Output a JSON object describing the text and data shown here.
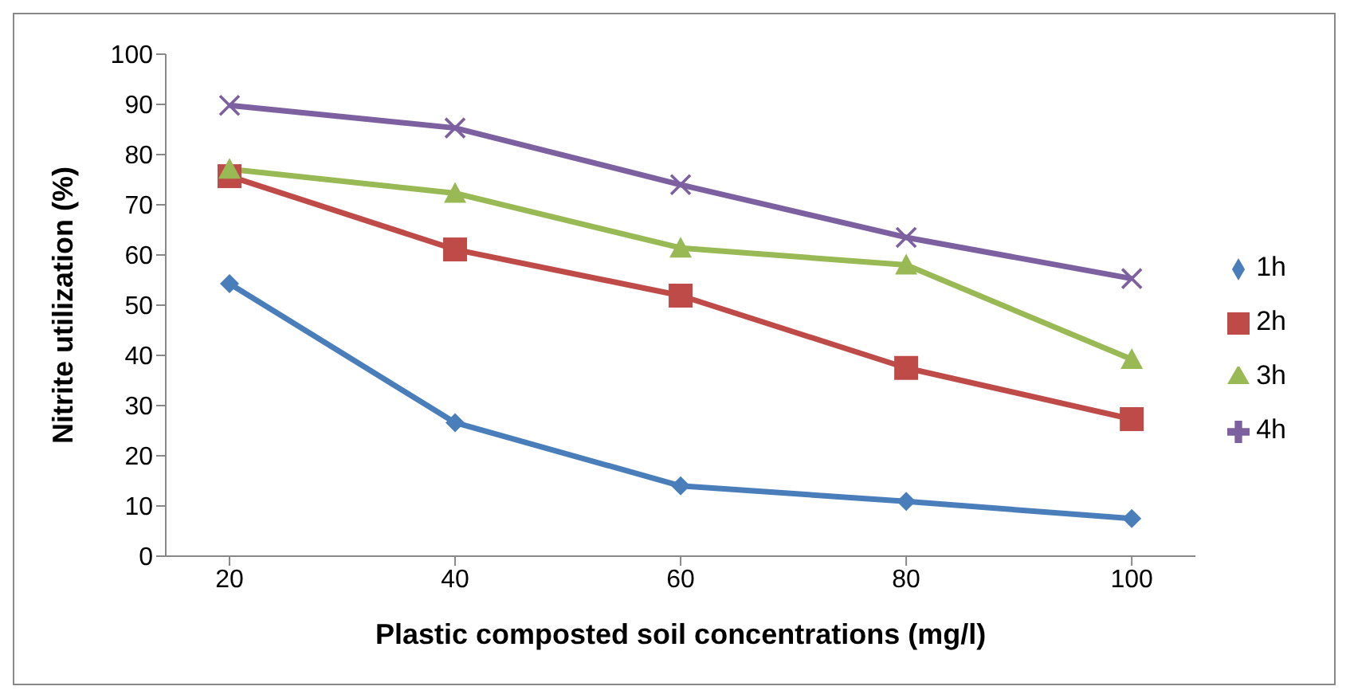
{
  "chart_data": {
    "type": "line",
    "xlabel": "Plastic composted soil concentrations (mg/l)",
    "ylabel": "Nitrite utilization (%)",
    "categories": [
      "20",
      "40",
      "60",
      "80",
      "100"
    ],
    "series": [
      {
        "name": "1h",
        "color": "#4a7ebb",
        "marker": "diamond",
        "values": [
          54.3,
          26.6,
          14,
          10.9,
          7.5
        ]
      },
      {
        "name": "2h",
        "color": "#be4b48",
        "marker": "square",
        "values": [
          75.7,
          61.1,
          51.9,
          37.5,
          27.3
        ]
      },
      {
        "name": "3h",
        "color": "#98b954",
        "marker": "triangle",
        "values": [
          77.1,
          72.3,
          61.4,
          58,
          39.2
        ]
      },
      {
        "name": "4h",
        "color": "#7d60a0",
        "marker": "cross",
        "values": [
          89.8,
          85.3,
          74,
          63.5,
          55.3
        ]
      }
    ],
    "ylim": [
      0,
      100
    ],
    "yticks": [
      0,
      10,
      20,
      30,
      40,
      50,
      60,
      70,
      80,
      90,
      100
    ],
    "grid": false,
    "legend": "right"
  }
}
